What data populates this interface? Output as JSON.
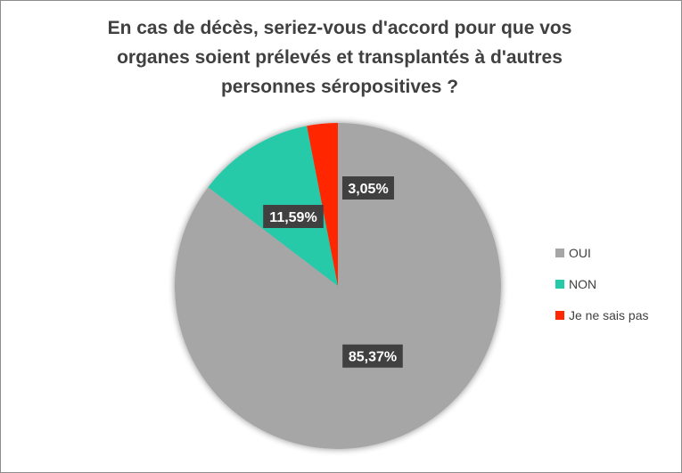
{
  "chart_data": {
    "type": "pie",
    "title_lines": [
      "En cas de décès, seriez-vous d'accord pour que vos",
      "organes soient prélevés et transplantés à d'autres",
      "personnes séropositives ?"
    ],
    "categories": [
      "OUI",
      "NON",
      "Je ne sais pas"
    ],
    "values": [
      85.37,
      11.59,
      3.05
    ],
    "data_labels": [
      "85,37%",
      "11,59%",
      "3,05%"
    ],
    "colors": [
      "#a6a6a6",
      "#26c9a8",
      "#ff2600"
    ],
    "legend_position": "right"
  }
}
